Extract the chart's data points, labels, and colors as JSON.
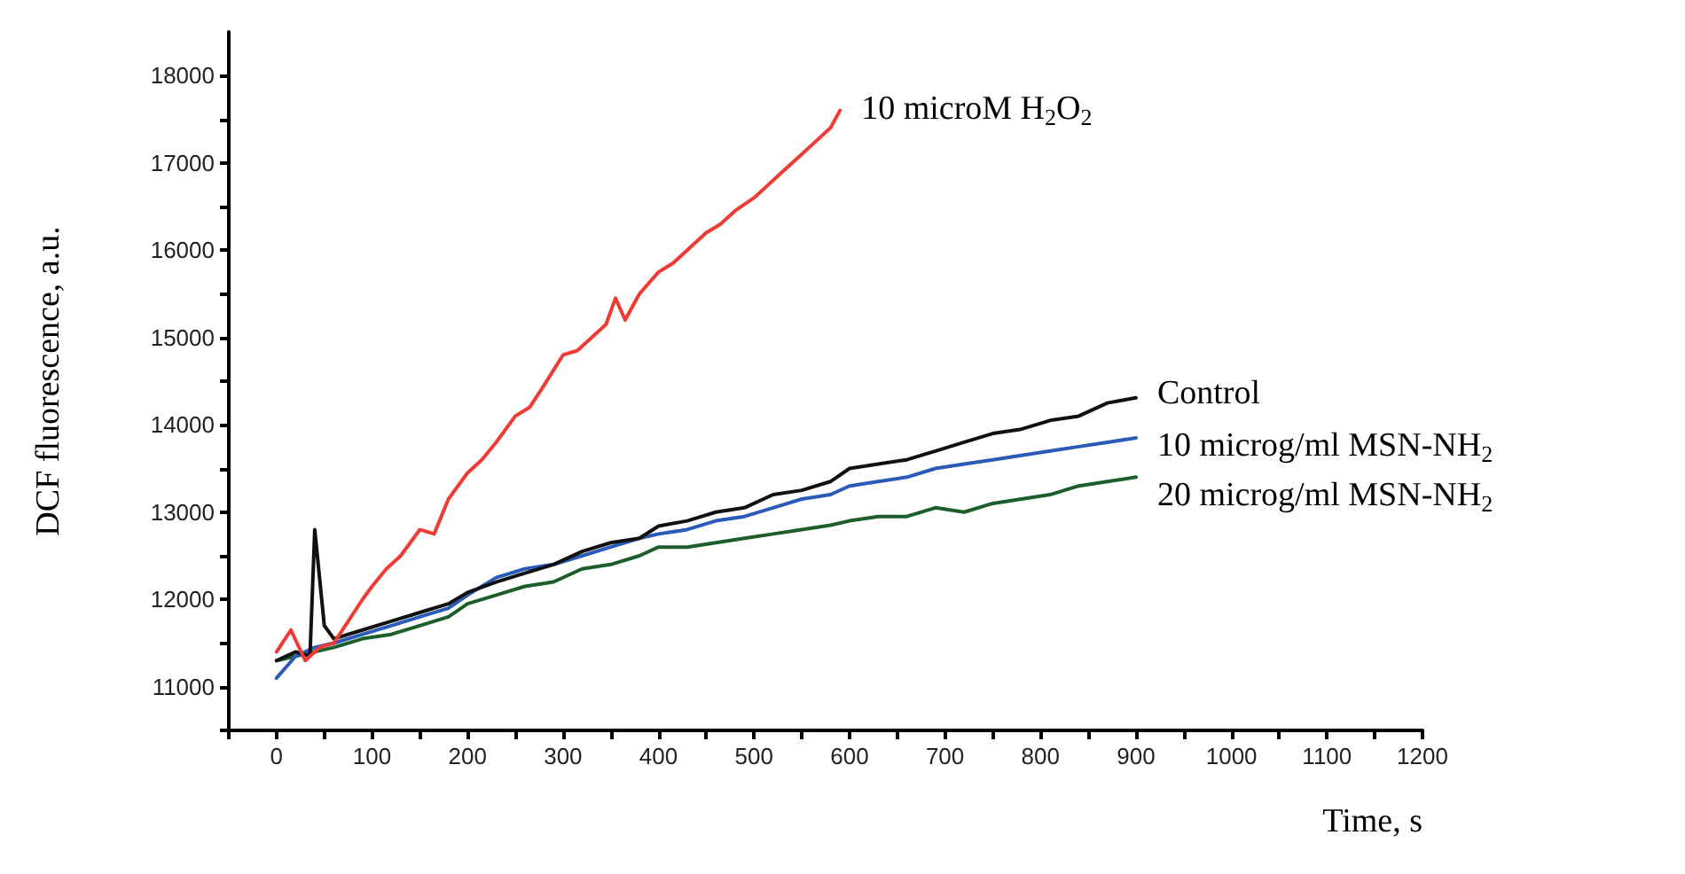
{
  "chart_data": {
    "type": "line",
    "xlabel": "Time, s",
    "ylabel": "DCF fluorescence, a.u.",
    "xlim": [
      -50,
      1200
    ],
    "ylim": [
      10500,
      18500
    ],
    "xticks": [
      {
        "value": -50,
        "label": null
      },
      0,
      {
        "value": 50,
        "label": null
      },
      100,
      {
        "value": 150,
        "label": null
      },
      200,
      {
        "value": 250,
        "label": null
      },
      300,
      {
        "value": 350,
        "label": null
      },
      400,
      {
        "value": 450,
        "label": null
      },
      500,
      {
        "value": 550,
        "label": null
      },
      600,
      {
        "value": 650,
        "label": null
      },
      700,
      {
        "value": 750,
        "label": null
      },
      800,
      {
        "value": 850,
        "label": null
      },
      900,
      {
        "value": 950,
        "label": null
      },
      1000,
      {
        "value": 1050,
        "label": null
      },
      1100,
      {
        "value": 1150,
        "label": null
      },
      1200
    ],
    "yticks": [
      {
        "value": 10500,
        "label": null
      },
      11000,
      {
        "value": 11500,
        "label": null
      },
      12000,
      {
        "value": 12500,
        "label": null
      },
      13000,
      {
        "value": 13500,
        "label": null
      },
      14000,
      {
        "value": 14500,
        "label": null
      },
      15000,
      {
        "value": 15500,
        "label": null
      },
      16000,
      {
        "value": 16500,
        "label": null
      },
      17000,
      {
        "value": 17500,
        "label": null
      },
      18000
    ],
    "grid": false,
    "marker": "none",
    "line_style": "solid",
    "series": [
      {
        "name": "10 microM H$_{2}$O$_{2}$",
        "color": "#f03a34",
        "x": [
          0,
          15,
          30,
          45,
          60,
          75,
          90,
          100,
          115,
          130,
          150,
          165,
          180,
          200,
          215,
          230,
          250,
          265,
          280,
          300,
          315,
          330,
          345,
          355,
          365,
          380,
          400,
          415,
          430,
          450,
          465,
          480,
          500,
          515,
          530,
          550,
          565,
          580,
          590
        ],
        "values": [
          11400,
          11650,
          11300,
          11450,
          11500,
          11750,
          12000,
          12150,
          12350,
          12500,
          12800,
          12750,
          13150,
          13450,
          13600,
          13800,
          14100,
          14200,
          14450,
          14800,
          14850,
          15000,
          15150,
          15450,
          15200,
          15500,
          15750,
          15850,
          16000,
          16200,
          16300,
          16450,
          16600,
          16750,
          16900,
          17100,
          17250,
          17400,
          17600
        ]
      },
      {
        "name": "Control",
        "color": "#111111",
        "x": [
          0,
          20,
          35,
          40,
          50,
          60,
          90,
          120,
          150,
          180,
          200,
          230,
          260,
          290,
          320,
          350,
          380,
          400,
          430,
          460,
          490,
          520,
          550,
          580,
          600,
          630,
          660,
          690,
          720,
          750,
          780,
          810,
          840,
          870,
          900
        ],
        "values": [
          11300,
          11400,
          11350,
          12800,
          11700,
          11550,
          11650,
          11750,
          11850,
          11950,
          12080,
          12200,
          12300,
          12400,
          12550,
          12650,
          12700,
          12840,
          12900,
          13000,
          13050,
          13200,
          13250,
          13350,
          13500,
          13550,
          13600,
          13700,
          13800,
          13900,
          13950,
          14050,
          14100,
          14250,
          14310
        ]
      },
      {
        "name": "10 microg/ml MSN-NH$_{2}$",
        "color": "#2b5bb8",
        "x": [
          0,
          20,
          40,
          60,
          90,
          120,
          150,
          180,
          200,
          230,
          260,
          290,
          320,
          350,
          380,
          400,
          430,
          460,
          490,
          520,
          550,
          580,
          600,
          630,
          660,
          690,
          720,
          750,
          780,
          810,
          840,
          870,
          900
        ],
        "values": [
          11100,
          11350,
          11450,
          11500,
          11600,
          11700,
          11800,
          11900,
          12050,
          12250,
          12350,
          12400,
          12500,
          12600,
          12700,
          12750,
          12800,
          12900,
          12950,
          13050,
          13150,
          13200,
          13300,
          13350,
          13400,
          13500,
          13550,
          13600,
          13650,
          13700,
          13750,
          13800,
          13850
        ]
      },
      {
        "name": "20 microg/ml MSN-NH$_{2}$",
        "color": "#1b5e2a",
        "x": [
          0,
          20,
          40,
          60,
          90,
          120,
          150,
          180,
          200,
          230,
          260,
          290,
          320,
          350,
          380,
          400,
          430,
          460,
          490,
          520,
          550,
          580,
          600,
          630,
          660,
          690,
          720,
          750,
          780,
          810,
          840,
          870,
          900
        ],
        "values": [
          11300,
          11350,
          11400,
          11450,
          11550,
          11600,
          11700,
          11800,
          11950,
          12050,
          12150,
          12200,
          12350,
          12400,
          12500,
          12600,
          12600,
          12650,
          12700,
          12750,
          12800,
          12850,
          12900,
          12950,
          12950,
          13050,
          13000,
          13100,
          13150,
          13200,
          13300,
          13350,
          13400
        ]
      }
    ]
  }
}
